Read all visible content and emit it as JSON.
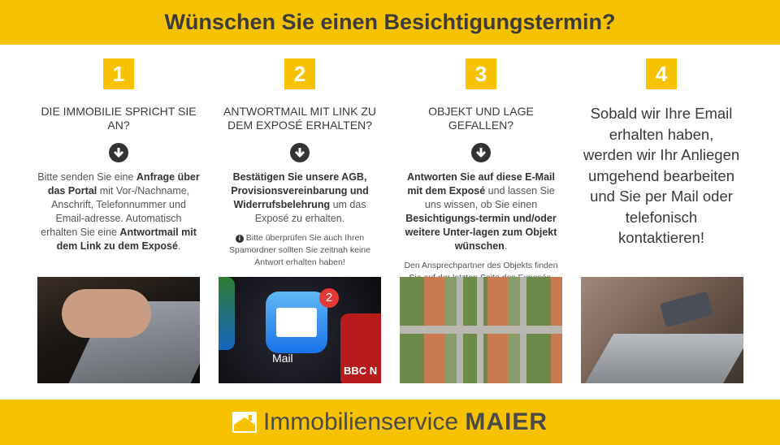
{
  "header": {
    "title": "Wünschen Sie einen Besichtigungstermin?"
  },
  "steps": [
    {
      "number": "1",
      "heading": "Die Immobilie spricht sie an?",
      "body": [
        {
          "t": "Bitte senden Sie eine ",
          "b": false
        },
        {
          "t": "Anfrage über das Portal",
          "b": true
        },
        {
          "t": " mit Vor-/Nachname, Anschrift, Telefonnummer und Email-adresse. Automatisch erhalten Sie eine ",
          "b": false
        },
        {
          "t": "Antwortmail mit dem Link zu dem Exposé",
          "b": true
        },
        {
          "t": ".",
          "b": false
        }
      ]
    },
    {
      "number": "2",
      "heading": "Antwortmail mit Link zu dem Exposé erhalten?",
      "body": [
        {
          "t": "Bestätigen Sie unsere AGB, Provisionsvereinbarung und Widerrufsbelehrung",
          "b": true
        },
        {
          "t": " um das Exposé zu erhalten.",
          "b": false
        }
      ],
      "note": "Bitte überprüfen Sie auch Ihren Spamordner sollten Sie zeitnah keine Antwort erhalten haben!"
    },
    {
      "number": "3",
      "heading": "Objekt und Lage gefallen?",
      "body": [
        {
          "t": "Antworten Sie auf diese E-Mail mit dem Exposé",
          "b": true
        },
        {
          "t": " und lassen Sie uns wissen, ob Sie einen ",
          "b": false
        },
        {
          "t": "Besichtigungs-termin und/oder weitere Unter-lagen zum Objekt wünschen",
          "b": true
        },
        {
          "t": ".",
          "b": false
        }
      ],
      "note": "Den Ansprechpartner des Objekts finden Sie auf der letzten Seite des Exposés."
    },
    {
      "number": "4",
      "text": "Sobald wir Ihre Email erhalten haben, werden wir Ihr Anliegen umgehend bearbeiten und Sie per Mail oder telefonisch kontaktieren!"
    }
  ],
  "images": {
    "mail_label": "Mail",
    "mail_badge": "2",
    "news_label": "BBC N"
  },
  "footer": {
    "brand_light": "Immobilienservice",
    "brand_bold": "MAIER"
  },
  "colors": {
    "accent": "#f7c300",
    "text": "#3a3a3a"
  }
}
